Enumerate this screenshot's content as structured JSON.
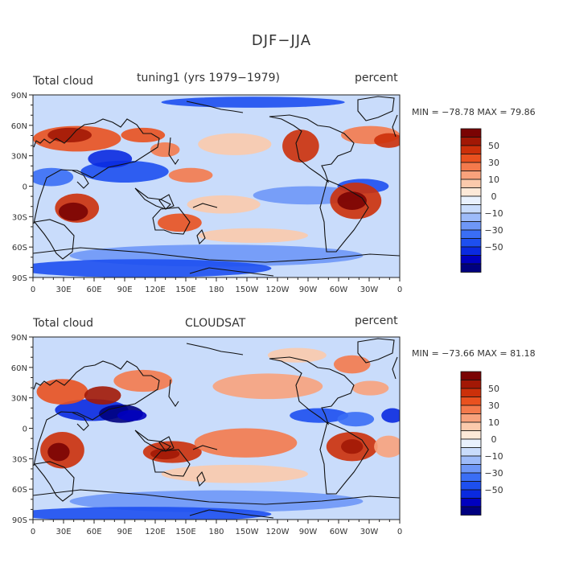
{
  "page": {
    "title": "DJF−JJA"
  },
  "colorbar": {
    "colors": [
      "#00007f",
      "#0000bf",
      "#0a2ae0",
      "#1d4fef",
      "#3a6ef5",
      "#6e97f7",
      "#9dbbf9",
      "#c9dcfb",
      "#e9f1fd",
      "#fde9d8",
      "#fbcaac",
      "#f8a27c",
      "#f47a4c",
      "#e9511f",
      "#cc300a",
      "#a21805",
      "#7a0303"
    ],
    "labels": [
      "50",
      "30",
      "10",
      "0",
      "−10",
      "−30",
      "−50"
    ]
  },
  "chart_data": [
    {
      "type": "heatmap",
      "title": "tuning1 (yrs 1979−1979)",
      "left_label": "Total cloud",
      "right_label": "percent",
      "stats": "MIN = −78.78  MAX =   79.86",
      "min": -78.78,
      "max": 79.86,
      "x_ticks": [
        "0",
        "30E",
        "60E",
        "90E",
        "120E",
        "150E",
        "180",
        "150W",
        "120W",
        "90W",
        "60W",
        "30W",
        "0"
      ],
      "y_ticks": [
        "90N",
        "60N",
        "30N",
        "0",
        "30S",
        "60S",
        "90S"
      ],
      "xlim": [
        0,
        360
      ],
      "ylim": [
        -90,
        90
      ],
      "colorbar_levels": [
        50,
        30,
        10,
        0,
        -10,
        -30,
        -50
      ]
    },
    {
      "type": "heatmap",
      "title": "CLOUDSAT",
      "left_label": "Total cloud",
      "right_label": "percent",
      "stats": "MIN = −73.66  MAX =   81.18",
      "min": -73.66,
      "max": 81.18,
      "x_ticks": [
        "0",
        "30E",
        "60E",
        "90E",
        "120E",
        "150E",
        "180",
        "150W",
        "120W",
        "90W",
        "60W",
        "30W",
        "0"
      ],
      "y_ticks": [
        "90N",
        "60N",
        "30N",
        "0",
        "30S",
        "60S",
        "90S"
      ],
      "xlim": [
        0,
        360
      ],
      "ylim": [
        -90,
        90
      ],
      "colorbar_levels": [
        50,
        30,
        10,
        0,
        -10,
        -30,
        -50
      ]
    }
  ]
}
